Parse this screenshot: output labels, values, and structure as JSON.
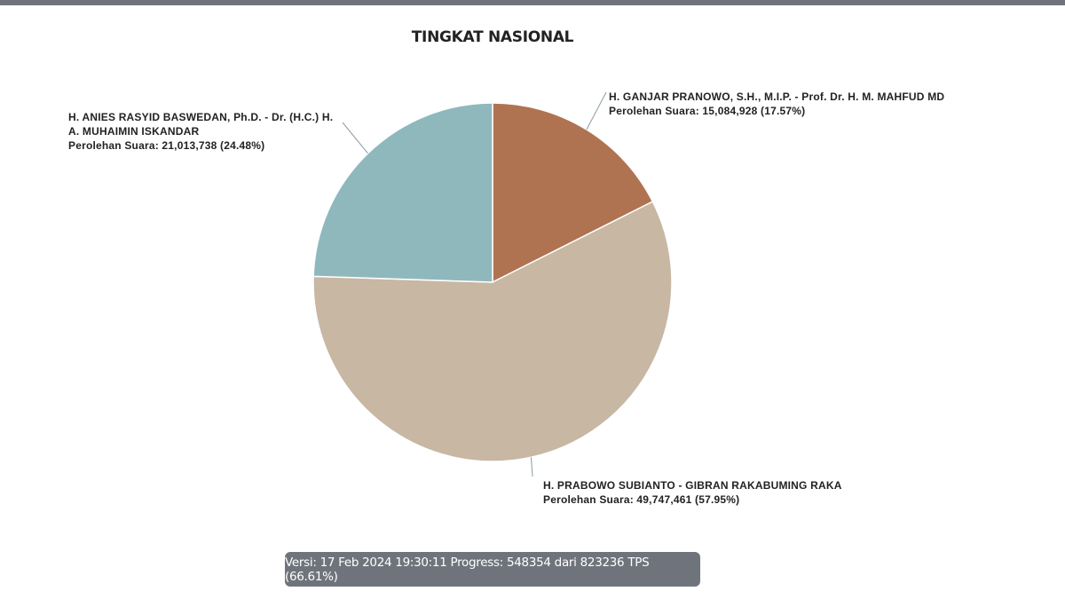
{
  "header": {
    "title": "TINGKAT NASIONAL"
  },
  "labels": [
    {
      "name_line1": "H. GANJAR PRANOWO, S.H., M.I.P. - Prof. Dr. H. M. MAHFUD MD",
      "name_line2": "",
      "votes_text": "Perolehan Suara: 15,084,928 (17.57%)"
    },
    {
      "name_line1": "H. PRABOWO SUBIANTO - GIBRAN RAKABUMING RAKA",
      "name_line2": "",
      "votes_text": "Perolehan Suara: 49,747,461 (57.95%)"
    },
    {
      "name_line1": "H. ANIES RASYID BASWEDAN, Ph.D. - Dr. (H.C.) H.",
      "name_line2": "A. MUHAIMIN ISKANDAR",
      "votes_text": "Perolehan Suara: 21,013,738 (24.48%)"
    }
  ],
  "footer": {
    "text": "Versi: 17 Feb 2024 19:30:11 Progress: 548354 dari 823236 TPS (66.61%)"
  },
  "chart_data": {
    "type": "pie",
    "title": "TINGKAT NASIONAL",
    "categories": [
      "H. GANJAR PRANOWO, S.H., M.I.P. - Prof. Dr. H. M. MAHFUD MD",
      "H. PRABOWO SUBIANTO - GIBRAN RAKABUMING RAKA",
      "H. ANIES RASYID BASWEDAN, Ph.D. - Dr. (H.C.) H. A. MUHAIMIN ISKANDAR"
    ],
    "values": [
      15084928,
      49747461,
      21013738
    ],
    "percentages": [
      17.57,
      57.95,
      24.48
    ],
    "colors": [
      "#b07351",
      "#c7b7a3",
      "#8fb8bd"
    ],
    "start_angle": "12 o'clock, clockwise",
    "legend": "none (callout labels)",
    "footnote": "Versi: 17 Feb 2024 19:30:11 Progress: 548354 dari 823236 TPS (66.61%)"
  }
}
